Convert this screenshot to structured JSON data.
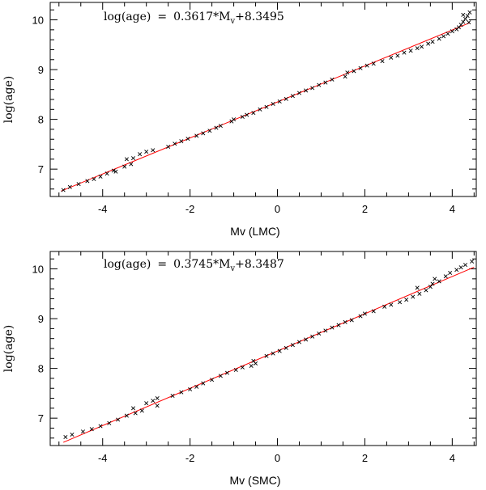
{
  "chart_data": [
    {
      "type": "scatter",
      "title": "",
      "xlabel": "Mv (LMC)",
      "ylabel": "log(age)",
      "xlim": [
        -5.2,
        4.55
      ],
      "ylim": [
        6.45,
        10.35
      ],
      "xticks": [
        -4,
        -2,
        0,
        2,
        4
      ],
      "yticks": [
        7,
        8,
        9,
        10
      ],
      "annotation": {
        "lhs": "log(age)",
        "equals": "=",
        "coef": "0.3617*M",
        "sub": "v",
        "const": "+8.3495"
      },
      "fit": {
        "slope": 0.3617,
        "intercept": 8.3495,
        "x_range": [
          -4.95,
          4.4
        ],
        "color": "#ff0000"
      },
      "marker_color": "#000000",
      "points": [
        [
          -4.9,
          6.58
        ],
        [
          -4.75,
          6.64
        ],
        [
          -4.55,
          6.7
        ],
        [
          -4.35,
          6.76
        ],
        [
          -4.2,
          6.8
        ],
        [
          -4.05,
          6.85
        ],
        [
          -3.9,
          6.91
        ],
        [
          -3.75,
          6.97
        ],
        [
          -3.7,
          6.95
        ],
        [
          -3.5,
          7.05
        ],
        [
          -3.45,
          7.2
        ],
        [
          -3.35,
          7.1
        ],
        [
          -3.3,
          7.22
        ],
        [
          -3.15,
          7.3
        ],
        [
          -3.0,
          7.35
        ],
        [
          -2.85,
          7.38
        ],
        [
          -2.5,
          7.45
        ],
        [
          -2.35,
          7.51
        ],
        [
          -2.2,
          7.56
        ],
        [
          -2.05,
          7.61
        ],
        [
          -1.85,
          7.67
        ],
        [
          -1.7,
          7.72
        ],
        [
          -1.55,
          7.77
        ],
        [
          -1.4,
          7.83
        ],
        [
          -1.3,
          7.87
        ],
        [
          -1.05,
          7.96
        ],
        [
          -1.0,
          8.0
        ],
        [
          -0.8,
          8.05
        ],
        [
          -0.7,
          8.09
        ],
        [
          -0.55,
          8.13
        ],
        [
          -0.4,
          8.2
        ],
        [
          -0.25,
          8.25
        ],
        [
          -0.1,
          8.31
        ],
        [
          0.05,
          8.36
        ],
        [
          0.2,
          8.41
        ],
        [
          0.35,
          8.47
        ],
        [
          0.5,
          8.53
        ],
        [
          0.65,
          8.58
        ],
        [
          0.8,
          8.63
        ],
        [
          0.95,
          8.69
        ],
        [
          1.1,
          8.74
        ],
        [
          1.25,
          8.8
        ],
        [
          1.55,
          8.86
        ],
        [
          1.6,
          8.94
        ],
        [
          1.75,
          8.97
        ],
        [
          1.9,
          9.03
        ],
        [
          2.05,
          9.08
        ],
        [
          2.2,
          9.12
        ],
        [
          2.4,
          9.17
        ],
        [
          2.6,
          9.24
        ],
        [
          2.75,
          9.28
        ],
        [
          2.9,
          9.34
        ],
        [
          3.05,
          9.38
        ],
        [
          3.2,
          9.43
        ],
        [
          3.3,
          9.46
        ],
        [
          3.45,
          9.52
        ],
        [
          3.55,
          9.56
        ],
        [
          3.7,
          9.62
        ],
        [
          3.8,
          9.67
        ],
        [
          3.9,
          9.72
        ],
        [
          4.0,
          9.77
        ],
        [
          4.1,
          9.81
        ],
        [
          4.15,
          9.85
        ],
        [
          4.2,
          9.9
        ],
        [
          4.25,
          9.96
        ],
        [
          4.3,
          10.02
        ],
        [
          4.35,
          10.08
        ],
        [
          4.25,
          10.1
        ],
        [
          4.4,
          10.15
        ],
        [
          4.38,
          9.95
        ]
      ]
    },
    {
      "type": "scatter",
      "title": "",
      "xlabel": "Mv (SMC)",
      "ylabel": "log(age)",
      "xlim": [
        -5.2,
        4.55
      ],
      "ylim": [
        6.45,
        10.35
      ],
      "xticks": [
        -4,
        -2,
        0,
        2,
        4
      ],
      "yticks": [
        7,
        8,
        9,
        10
      ],
      "annotation": {
        "lhs": "log(age)",
        "equals": "=",
        "coef": "0.3745*M",
        "sub": "v",
        "const": "+8.3487"
      },
      "fit": {
        "slope": 0.3745,
        "intercept": 8.3487,
        "x_range": [
          -4.9,
          4.5
        ],
        "color": "#ff0000"
      },
      "marker_color": "#000000",
      "points": [
        [
          -4.85,
          6.62
        ],
        [
          -4.7,
          6.67
        ],
        [
          -4.45,
          6.73
        ],
        [
          -4.25,
          6.78
        ],
        [
          -4.05,
          6.84
        ],
        [
          -3.85,
          6.9
        ],
        [
          -3.65,
          6.97
        ],
        [
          -3.45,
          7.05
        ],
        [
          -3.3,
          7.2
        ],
        [
          -3.25,
          7.1
        ],
        [
          -3.1,
          7.15
        ],
        [
          -3.0,
          7.3
        ],
        [
          -2.85,
          7.35
        ],
        [
          -2.75,
          7.4
        ],
        [
          -2.75,
          7.25
        ],
        [
          -2.4,
          7.45
        ],
        [
          -2.2,
          7.52
        ],
        [
          -2.0,
          7.58
        ],
        [
          -1.85,
          7.63
        ],
        [
          -1.7,
          7.7
        ],
        [
          -1.5,
          7.77
        ],
        [
          -1.3,
          7.85
        ],
        [
          -1.15,
          7.91
        ],
        [
          -0.95,
          7.97
        ],
        [
          -0.8,
          8.02
        ],
        [
          -0.6,
          8.05
        ],
        [
          -0.55,
          8.15
        ],
        [
          -0.5,
          8.1
        ],
        [
          -0.25,
          8.25
        ],
        [
          -0.1,
          8.3
        ],
        [
          0.05,
          8.35
        ],
        [
          0.2,
          8.41
        ],
        [
          0.35,
          8.47
        ],
        [
          0.5,
          8.53
        ],
        [
          0.65,
          8.58
        ],
        [
          0.8,
          8.64
        ],
        [
          0.95,
          8.7
        ],
        [
          1.1,
          8.76
        ],
        [
          1.25,
          8.82
        ],
        [
          1.4,
          8.87
        ],
        [
          1.55,
          8.93
        ],
        [
          1.7,
          8.97
        ],
        [
          1.9,
          9.05
        ],
        [
          2.0,
          9.1
        ],
        [
          2.2,
          9.15
        ],
        [
          2.45,
          9.24
        ],
        [
          2.6,
          9.28
        ],
        [
          2.8,
          9.33
        ],
        [
          2.95,
          9.38
        ],
        [
          3.1,
          9.44
        ],
        [
          3.25,
          9.5
        ],
        [
          3.4,
          9.57
        ],
        [
          3.5,
          9.64
        ],
        [
          3.55,
          9.7
        ],
        [
          3.6,
          9.8
        ],
        [
          3.7,
          9.75
        ],
        [
          3.85,
          9.85
        ],
        [
          3.95,
          9.92
        ],
        [
          4.1,
          9.98
        ],
        [
          4.2,
          10.03
        ],
        [
          4.3,
          10.08
        ],
        [
          4.45,
          10.15
        ],
        [
          3.2,
          9.62
        ]
      ]
    }
  ]
}
